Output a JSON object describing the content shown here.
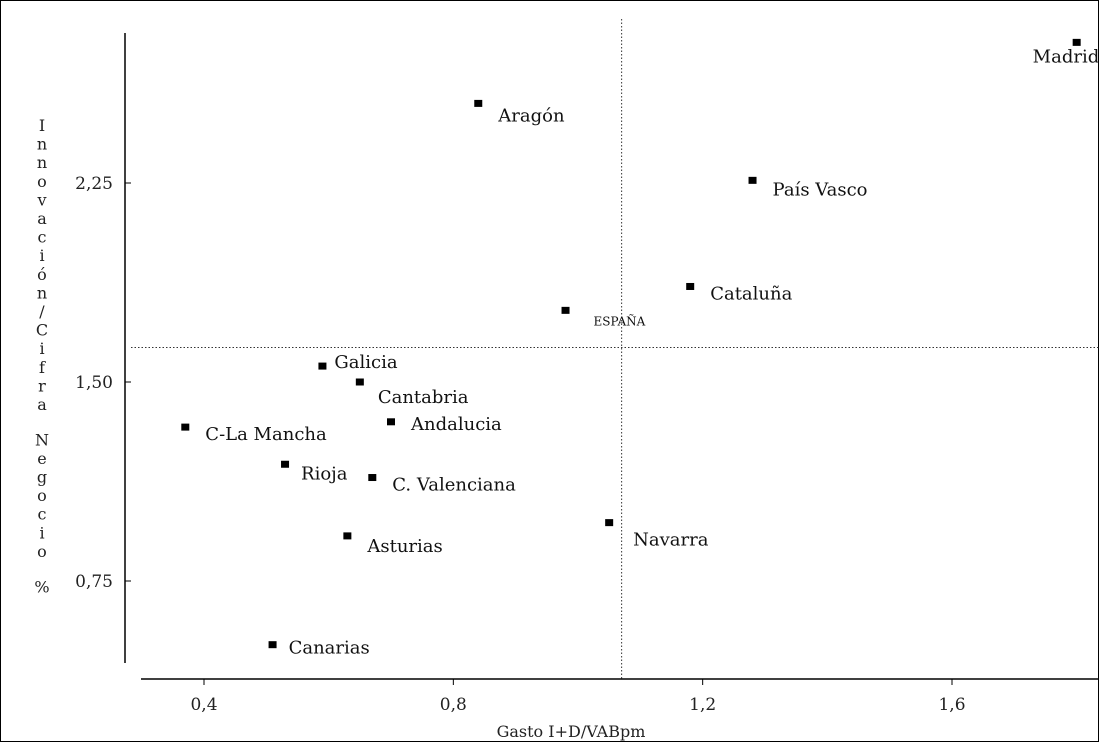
{
  "chart_data": {
    "type": "scatter",
    "title": "",
    "xlabel": "Gasto I+D/VABpm",
    "ylabel": "Innovación/Cifra Negocio %",
    "xlim": [
      0.3,
      1.85
    ],
    "ylim": [
      0.45,
      2.8
    ],
    "x_ticks": [
      {
        "value": 0.4,
        "label": "0,4"
      },
      {
        "value": 0.8,
        "label": "0,8"
      },
      {
        "value": 1.2,
        "label": "1,2"
      },
      {
        "value": 1.6,
        "label": "1,6"
      }
    ],
    "y_ticks": [
      {
        "value": 0.75,
        "label": "0,75"
      },
      {
        "value": 1.5,
        "label": "1,50"
      },
      {
        "value": 2.25,
        "label": "2,25"
      }
    ],
    "reference_lines": {
      "x": 1.07,
      "y": 1.63
    },
    "points": [
      {
        "name": "Madrid",
        "x": 1.8,
        "y": 2.78
      },
      {
        "name": "Aragón",
        "x": 0.84,
        "y": 2.55
      },
      {
        "name": "País Vasco",
        "x": 1.28,
        "y": 2.26
      },
      {
        "name": "Cataluña",
        "x": 1.18,
        "y": 1.86
      },
      {
        "name": "ESPAÑA",
        "x": 0.98,
        "y": 1.77
      },
      {
        "name": "Galicia",
        "x": 0.59,
        "y": 1.56
      },
      {
        "name": "Cantabria",
        "x": 0.65,
        "y": 1.5
      },
      {
        "name": "Andalucia",
        "x": 0.7,
        "y": 1.35
      },
      {
        "name": "C-La Mancha",
        "x": 0.37,
        "y": 1.33
      },
      {
        "name": "Rioja",
        "x": 0.53,
        "y": 1.19
      },
      {
        "name": "C. Valenciana",
        "x": 0.67,
        "y": 1.14
      },
      {
        "name": "Navarra",
        "x": 1.05,
        "y": 0.97
      },
      {
        "name": "Asturias",
        "x": 0.63,
        "y": 0.92
      },
      {
        "name": "Canarias",
        "x": 0.51,
        "y": 0.51
      }
    ]
  }
}
